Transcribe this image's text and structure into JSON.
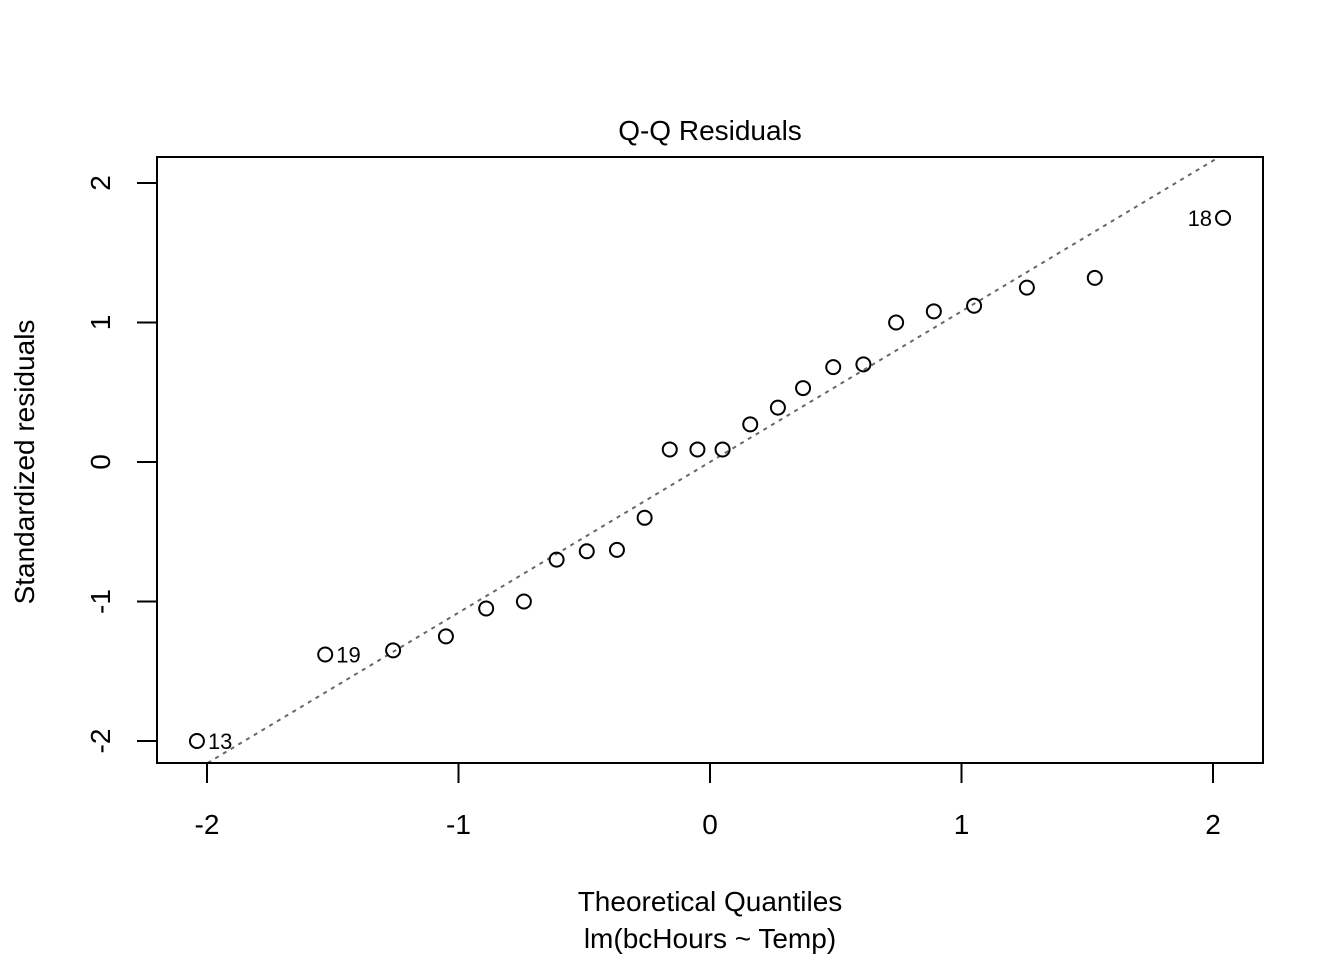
{
  "chart_data": {
    "type": "scatter",
    "title": "Q-Q Residuals",
    "xlabel": "Theoretical Quantiles",
    "subtitle": "lm(bcHours ~ Temp)",
    "ylabel": "Standardized residuals",
    "xlim": [
      -2.2,
      2.2
    ],
    "ylim": [
      -2.15,
      2.19
    ],
    "x_ticks": [
      -2,
      -1,
      0,
      1,
      2
    ],
    "y_ticks": [
      -2,
      -1,
      0,
      1,
      2
    ],
    "x_tick_labels": [
      "-2",
      "-1",
      "0",
      "1",
      "2"
    ],
    "y_tick_labels": [
      "-2",
      "-1",
      "0",
      "1",
      "2"
    ],
    "grid": false,
    "legend": null,
    "points": [
      {
        "x": -2.04,
        "y": -2.0,
        "label": "13"
      },
      {
        "x": -1.53,
        "y": -1.38,
        "label": "19"
      },
      {
        "x": -1.26,
        "y": -1.35
      },
      {
        "x": -1.05,
        "y": -1.25
      },
      {
        "x": -0.89,
        "y": -1.05
      },
      {
        "x": -0.74,
        "y": -1.0
      },
      {
        "x": -0.61,
        "y": -0.7
      },
      {
        "x": -0.49,
        "y": -0.64
      },
      {
        "x": -0.37,
        "y": -0.63
      },
      {
        "x": -0.26,
        "y": -0.4
      },
      {
        "x": -0.16,
        "y": 0.09
      },
      {
        "x": -0.05,
        "y": 0.09
      },
      {
        "x": 0.05,
        "y": 0.09
      },
      {
        "x": 0.16,
        "y": 0.27
      },
      {
        "x": 0.27,
        "y": 0.39
      },
      {
        "x": 0.37,
        "y": 0.53
      },
      {
        "x": 0.49,
        "y": 0.68
      },
      {
        "x": 0.61,
        "y": 0.7
      },
      {
        "x": 0.74,
        "y": 1.0
      },
      {
        "x": 0.89,
        "y": 1.08
      },
      {
        "x": 1.05,
        "y": 1.12
      },
      {
        "x": 1.26,
        "y": 1.25
      },
      {
        "x": 1.53,
        "y": 1.32
      },
      {
        "x": 2.04,
        "y": 1.75,
        "label": "18"
      }
    ],
    "reference_line": {
      "style": "dotted",
      "color": "#666666",
      "slope": 1.08,
      "intercept": 0.0
    },
    "point_style": {
      "shape": "open-circle",
      "color": "#000000"
    }
  }
}
